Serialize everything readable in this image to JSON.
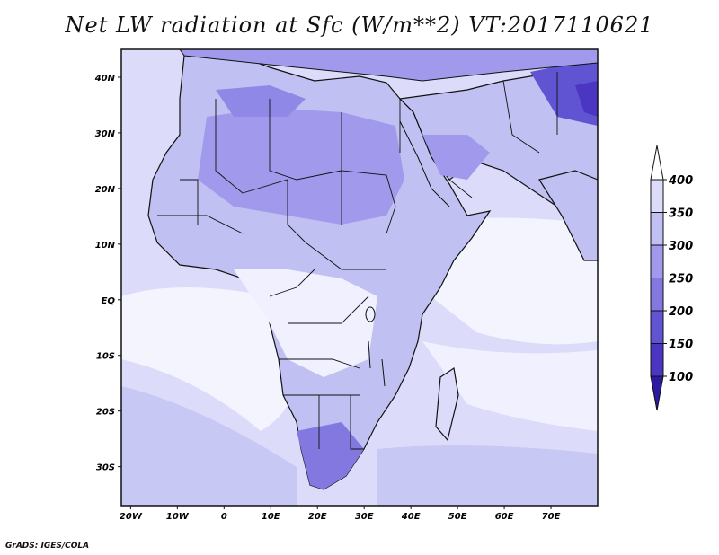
{
  "title": "Net LW radiation at Sfc (W/m**2) VT:2017110621",
  "footer": "GrADS: IGES/COLA",
  "map": {
    "lon_labels": [
      "20W",
      "10W",
      "0",
      "10E",
      "20E",
      "30E",
      "40E",
      "50E",
      "60E",
      "70E"
    ],
    "lat_labels": [
      "40N",
      "30N",
      "20N",
      "10N",
      "EQ",
      "10S",
      "20S",
      "30S"
    ],
    "lon_range": [
      -22,
      80
    ],
    "lat_range": [
      -37,
      45
    ]
  },
  "colorbar": {
    "levels": [
      "400",
      "350",
      "300",
      "250",
      "200",
      "150",
      "100"
    ],
    "colors": [
      "#f0f0ff",
      "#dcdcfa",
      "#c0c0f2",
      "#a19aec",
      "#8278e0",
      "#6154d2",
      "#4a36c2",
      "#2c1aa0"
    ]
  }
}
